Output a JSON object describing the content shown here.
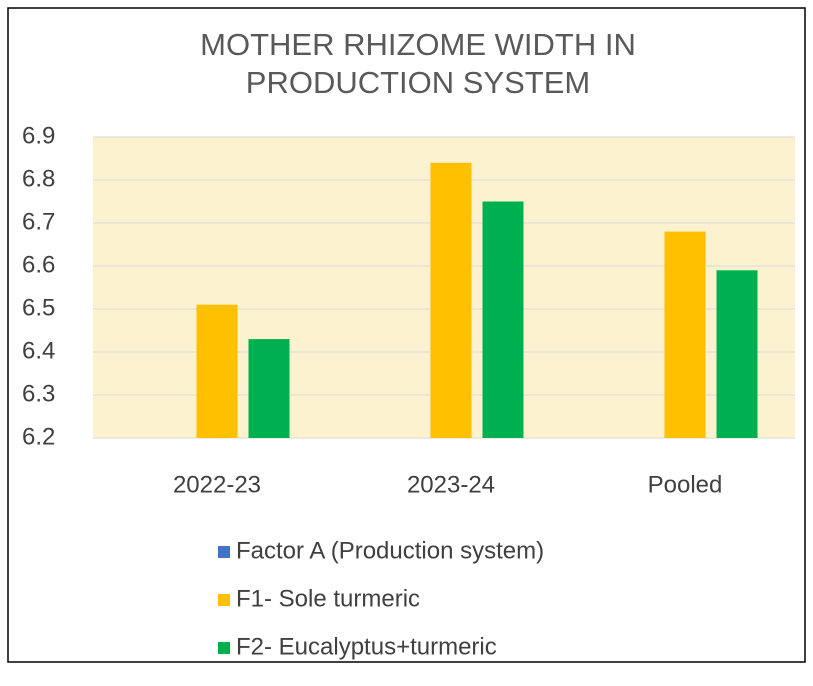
{
  "chart_data": {
    "type": "bar",
    "title": "MOTHER RHIZOME WIDTH IN PRODUCTION SYSTEM",
    "categories": [
      "2022-23",
      "2023-24",
      "Pooled"
    ],
    "series": [
      {
        "name": "Factor A (Production system)",
        "color": "#4472c4",
        "values": [
          null,
          null,
          null
        ]
      },
      {
        "name": "F1- Sole turmeric",
        "color": "#ffc000",
        "values": [
          6.51,
          6.84,
          6.68
        ]
      },
      {
        "name": "F2- Eucalyptus+turmeric",
        "color": "#00b050",
        "values": [
          6.43,
          6.75,
          6.59
        ]
      }
    ],
    "ylim": [
      6.2,
      6.9
    ],
    "yticks": [
      6.2,
      6.3,
      6.4,
      6.5,
      6.6,
      6.7,
      6.8,
      6.9
    ],
    "grid": true
  }
}
